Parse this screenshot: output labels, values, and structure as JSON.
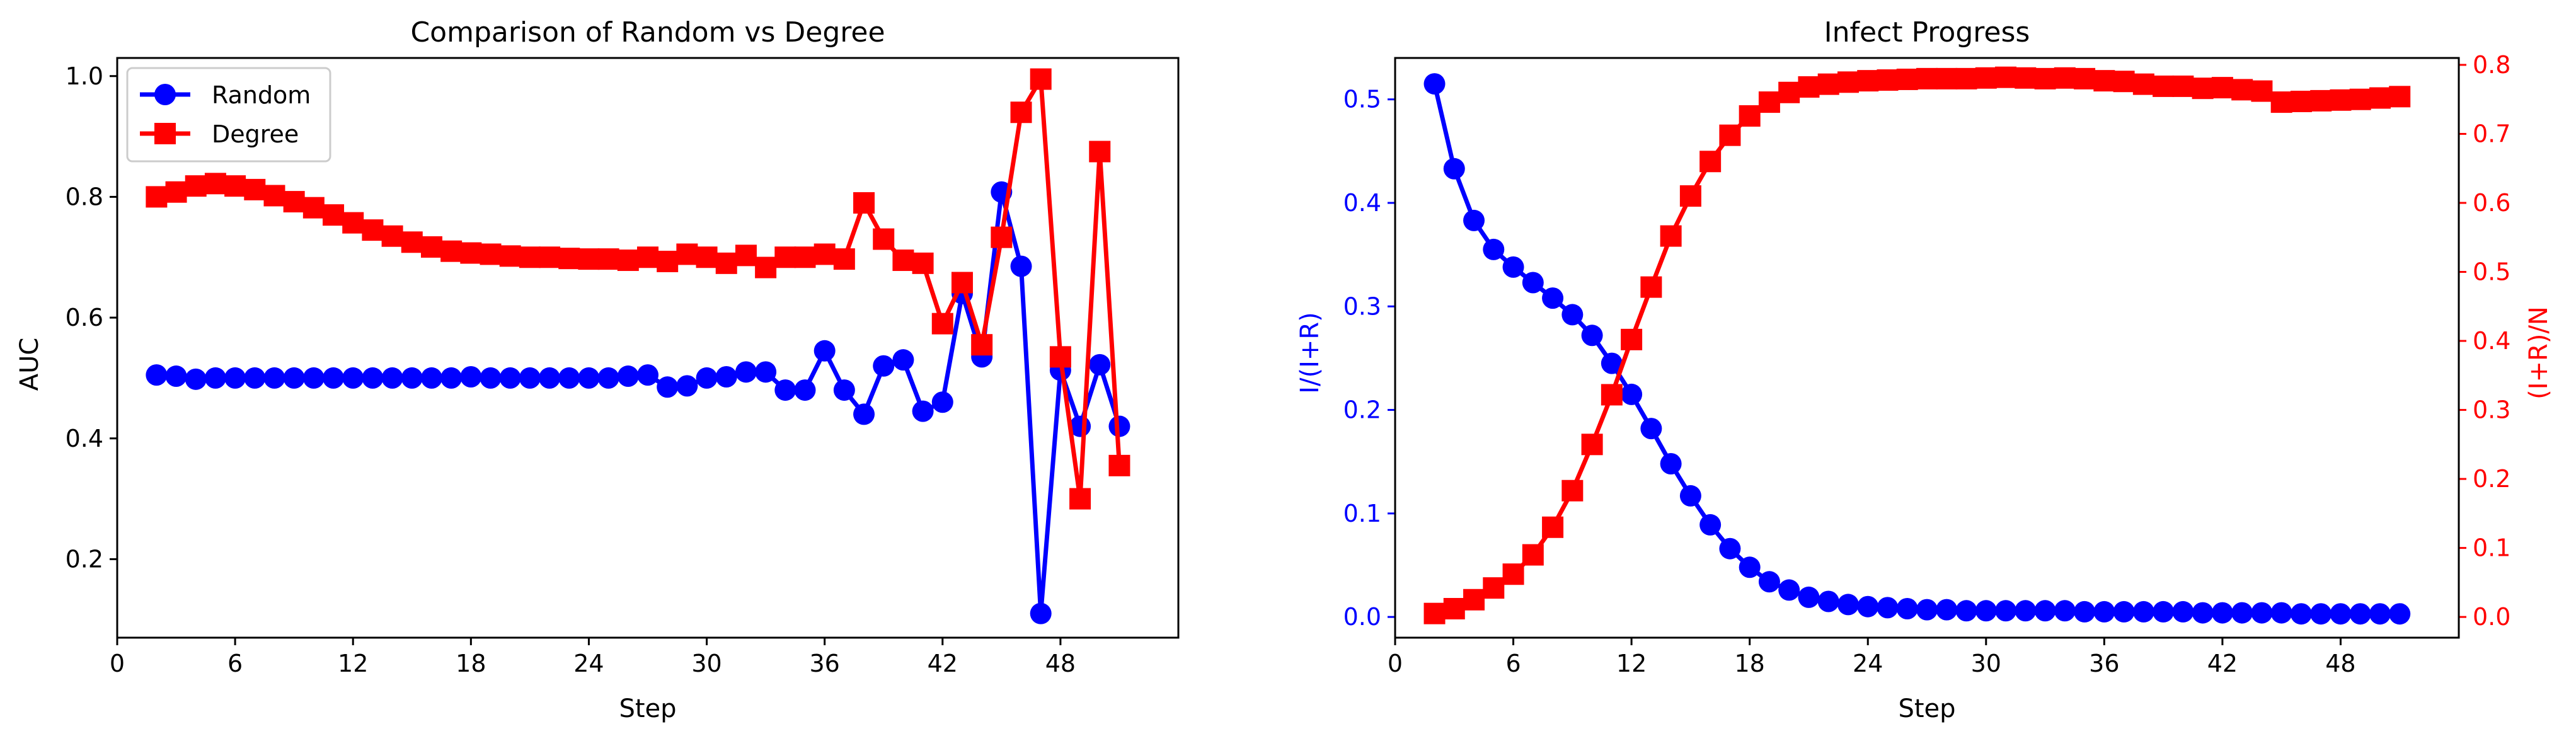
{
  "colors": {
    "random": "#0000ff",
    "degree": "#ff0000",
    "axis": "#000000",
    "background": "#ffffff"
  },
  "chart_data": [
    {
      "type": "line",
      "title": "Comparison of Random vs Degree",
      "xlabel": "Step",
      "ylabel": "AUC",
      "xlim": [
        0,
        54
      ],
      "ylim": [
        0.07,
        1.03
      ],
      "xticks": [
        0,
        6,
        12,
        18,
        24,
        30,
        36,
        42,
        48
      ],
      "yticks": [
        0.2,
        0.4,
        0.6,
        0.8,
        1.0
      ],
      "ytick_labels": [
        "0.2",
        "0.4",
        "0.6",
        "0.8",
        "1.0"
      ],
      "grid": false,
      "legend": "upper left",
      "x": [
        2,
        3,
        4,
        5,
        6,
        7,
        8,
        9,
        10,
        11,
        12,
        13,
        14,
        15,
        16,
        17,
        18,
        19,
        20,
        21,
        22,
        23,
        24,
        25,
        26,
        27,
        28,
        29,
        30,
        31,
        32,
        33,
        34,
        35,
        36,
        37,
        38,
        39,
        40,
        41,
        42,
        43,
        44,
        45,
        46,
        47,
        48,
        49,
        50,
        51
      ],
      "series": [
        {
          "name": "Random",
          "color": "#0000ff",
          "marker": "circle",
          "values": [
            0.505,
            0.503,
            0.498,
            0.5,
            0.5,
            0.5,
            0.5,
            0.5,
            0.5,
            0.5,
            0.5,
            0.5,
            0.5,
            0.5,
            0.5,
            0.5,
            0.502,
            0.5,
            0.5,
            0.5,
            0.5,
            0.5,
            0.5,
            0.5,
            0.503,
            0.505,
            0.485,
            0.487,
            0.5,
            0.502,
            0.51,
            0.51,
            0.48,
            0.48,
            0.545,
            0.48,
            0.44,
            0.52,
            0.53,
            0.445,
            0.46,
            0.64,
            0.535,
            0.808,
            0.685,
            0.11,
            0.513,
            0.42,
            0.522,
            0.42
          ]
        },
        {
          "name": "Degree",
          "color": "#ff0000",
          "marker": "square",
          "values": [
            0.8,
            0.808,
            0.818,
            0.822,
            0.818,
            0.812,
            0.802,
            0.792,
            0.782,
            0.77,
            0.757,
            0.745,
            0.735,
            0.725,
            0.717,
            0.71,
            0.707,
            0.705,
            0.702,
            0.7,
            0.7,
            0.698,
            0.697,
            0.697,
            0.695,
            0.7,
            0.693,
            0.705,
            0.7,
            0.69,
            0.703,
            0.683,
            0.7,
            0.7,
            0.705,
            0.697,
            0.79,
            0.73,
            0.695,
            0.69,
            0.59,
            0.658,
            0.555,
            0.733,
            0.94,
            0.995,
            0.535,
            0.3,
            0.875,
            0.355
          ]
        }
      ]
    },
    {
      "type": "line",
      "title": "Infect Progress",
      "xlabel": "Step",
      "ylabel": "I/(I+R)",
      "ylabel_right": "(I+R)/N",
      "xlim": [
        0,
        54
      ],
      "ylim": [
        -0.02,
        0.54
      ],
      "ylim_right": [
        -0.03,
        0.81
      ],
      "xticks": [
        0,
        6,
        12,
        18,
        24,
        30,
        36,
        42,
        48
      ],
      "yticks": [
        0,
        0.1,
        0.2,
        0.3,
        0.4,
        0.5
      ],
      "ytick_labels": [
        "0.0",
        "0.1",
        "0.2",
        "0.3",
        "0.4",
        "0.5"
      ],
      "yticks_right": [
        0,
        0.1,
        0.2,
        0.3,
        0.4,
        0.5,
        0.6,
        0.7,
        0.8
      ],
      "ytick_labels_right": [
        "0.0",
        "0.1",
        "0.2",
        "0.3",
        "0.4",
        "0.5",
        "0.6",
        "0.7",
        "0.8"
      ],
      "grid": false,
      "x": [
        2,
        3,
        4,
        5,
        6,
        7,
        8,
        9,
        10,
        11,
        12,
        13,
        14,
        15,
        16,
        17,
        18,
        19,
        20,
        21,
        22,
        23,
        24,
        25,
        26,
        27,
        28,
        29,
        30,
        31,
        32,
        33,
        34,
        35,
        36,
        37,
        38,
        39,
        40,
        41,
        42,
        43,
        44,
        45,
        46,
        47,
        48,
        49,
        50,
        51
      ],
      "series": [
        {
          "axis": "left",
          "color": "#0000ff",
          "marker": "circle",
          "values": [
            0.515,
            0.433,
            0.383,
            0.355,
            0.338,
            0.323,
            0.308,
            0.292,
            0.272,
            0.245,
            0.215,
            0.182,
            0.148,
            0.117,
            0.089,
            0.066,
            0.048,
            0.034,
            0.026,
            0.019,
            0.015,
            0.012,
            0.01,
            0.009,
            0.008,
            0.007,
            0.007,
            0.006,
            0.006,
            0.006,
            0.006,
            0.006,
            0.006,
            0.005,
            0.005,
            0.005,
            0.005,
            0.005,
            0.005,
            0.004,
            0.004,
            0.004,
            0.004,
            0.004,
            0.003,
            0.003,
            0.003,
            0.003,
            0.003,
            0.003
          ]
        },
        {
          "axis": "right",
          "color": "#ff0000",
          "marker": "square",
          "values": [
            0.005,
            0.012,
            0.025,
            0.042,
            0.062,
            0.09,
            0.13,
            0.183,
            0.25,
            0.322,
            0.402,
            0.478,
            0.552,
            0.61,
            0.66,
            0.698,
            0.726,
            0.746,
            0.76,
            0.768,
            0.772,
            0.775,
            0.777,
            0.778,
            0.779,
            0.78,
            0.78,
            0.78,
            0.781,
            0.782,
            0.781,
            0.78,
            0.781,
            0.78,
            0.777,
            0.776,
            0.772,
            0.769,
            0.769,
            0.766,
            0.767,
            0.764,
            0.762,
            0.746,
            0.747,
            0.748,
            0.749,
            0.75,
            0.752,
            0.754
          ]
        }
      ]
    }
  ]
}
